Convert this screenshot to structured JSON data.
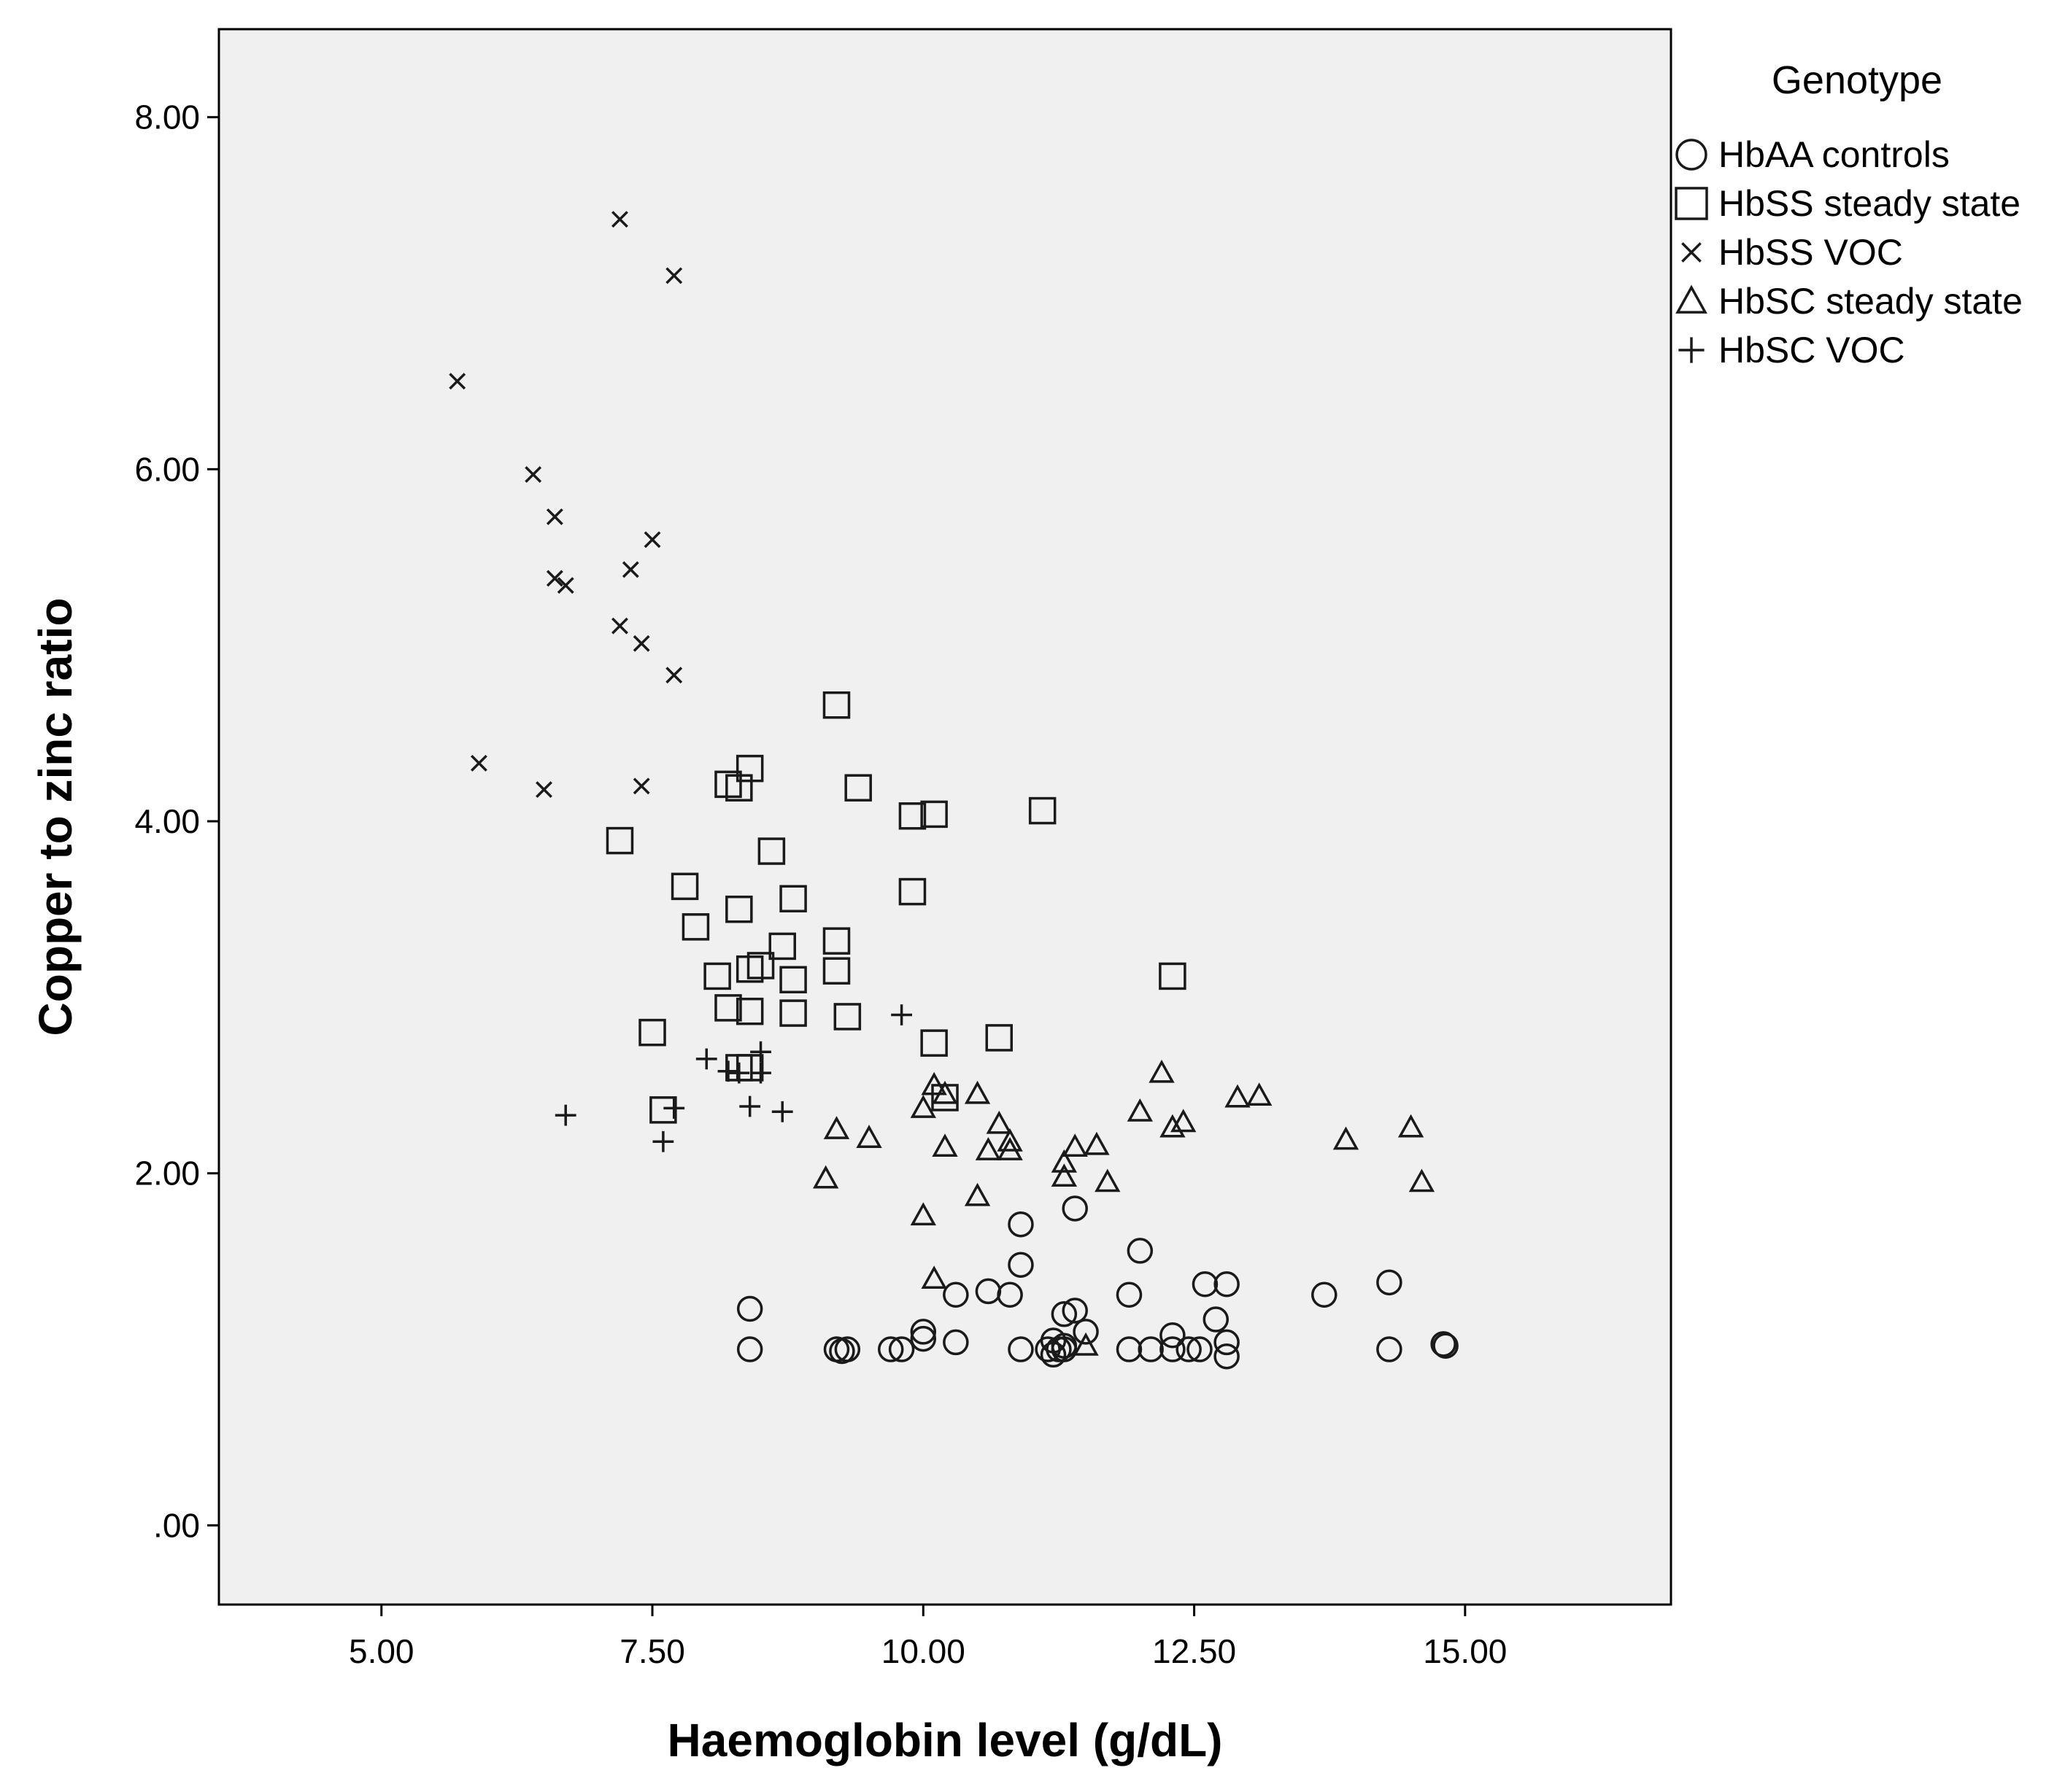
{
  "chart_data": {
    "type": "scatter",
    "title": "",
    "xlabel": "Haemoglobin level (g/dL)",
    "ylabel": "Copper to zinc ratio",
    "xlim": [
      3.5,
      16.9
    ],
    "ylim": [
      -0.45,
      8.5
    ],
    "xticks": [
      5.0,
      7.5,
      10.0,
      12.5,
      15.0
    ],
    "xtick_labels": [
      "5.00",
      "7.50",
      "10.00",
      "12.50",
      "15.00"
    ],
    "yticks": [
      0.0,
      2.0,
      4.0,
      6.0,
      8.0
    ],
    "ytick_labels": [
      ".00",
      "2.00",
      "4.00",
      "6.00",
      "8.00"
    ],
    "grid": false,
    "legend_title": "Genotype",
    "legend_position": "right",
    "series": [
      {
        "name": "HbAA controls",
        "marker": "circle",
        "points": [
          [
            8.4,
            1.23
          ],
          [
            8.4,
            1.0
          ],
          [
            9.2,
            1.0
          ],
          [
            9.25,
            0.99
          ],
          [
            9.3,
            1.0
          ],
          [
            9.7,
            1.0
          ],
          [
            9.8,
            1.0
          ],
          [
            10.0,
            1.1
          ],
          [
            10.0,
            1.06
          ],
          [
            10.3,
            1.31
          ],
          [
            10.3,
            1.04
          ],
          [
            10.6,
            1.33
          ],
          [
            10.8,
            1.31
          ],
          [
            10.9,
            1.71
          ],
          [
            10.9,
            1.48
          ],
          [
            10.9,
            1.0
          ],
          [
            11.15,
            1.0
          ],
          [
            11.2,
            0.97
          ],
          [
            11.2,
            1.05
          ],
          [
            11.25,
            1.0
          ],
          [
            11.3,
            1.2
          ],
          [
            11.3,
            1.0
          ],
          [
            11.3,
            1.02
          ],
          [
            11.4,
            1.8
          ],
          [
            11.4,
            1.22
          ],
          [
            11.5,
            1.1
          ],
          [
            11.9,
            1.31
          ],
          [
            11.9,
            1.0
          ],
          [
            12.0,
            1.56
          ],
          [
            12.1,
            1.0
          ],
          [
            12.3,
            1.08
          ],
          [
            12.3,
            1.0
          ],
          [
            12.45,
            1.0
          ],
          [
            12.55,
            1.0
          ],
          [
            12.6,
            1.37
          ],
          [
            12.7,
            1.17
          ],
          [
            12.8,
            1.37
          ],
          [
            12.8,
            1.04
          ],
          [
            12.8,
            0.96
          ],
          [
            13.7,
            1.31
          ],
          [
            14.3,
            1.38
          ],
          [
            14.3,
            1.0
          ],
          [
            14.8,
            1.03
          ],
          [
            14.82,
            1.02
          ]
        ]
      },
      {
        "name": "HbSS steady state",
        "marker": "square",
        "points": [
          [
            7.2,
            3.89
          ],
          [
            7.5,
            2.8
          ],
          [
            7.6,
            2.36
          ],
          [
            7.8,
            3.63
          ],
          [
            7.9,
            3.4
          ],
          [
            8.1,
            3.12
          ],
          [
            8.2,
            4.21
          ],
          [
            8.2,
            2.94
          ],
          [
            8.3,
            4.19
          ],
          [
            8.3,
            3.5
          ],
          [
            8.3,
            2.6
          ],
          [
            8.4,
            4.3
          ],
          [
            8.4,
            3.16
          ],
          [
            8.4,
            2.92
          ],
          [
            8.4,
            2.6
          ],
          [
            8.5,
            3.18
          ],
          [
            8.6,
            3.83
          ],
          [
            8.7,
            3.29
          ],
          [
            8.8,
            3.56
          ],
          [
            8.8,
            3.1
          ],
          [
            8.8,
            2.91
          ],
          [
            9.2,
            4.66
          ],
          [
            9.2,
            3.32
          ],
          [
            9.2,
            3.15
          ],
          [
            9.3,
            2.89
          ],
          [
            9.4,
            4.19
          ],
          [
            9.9,
            4.03
          ],
          [
            9.9,
            3.6
          ],
          [
            10.1,
            4.04
          ],
          [
            10.1,
            2.74
          ],
          [
            10.2,
            2.43
          ],
          [
            10.7,
            2.77
          ],
          [
            11.1,
            4.06
          ],
          [
            12.3,
            3.12
          ]
        ]
      },
      {
        "name": "HbSS VOC",
        "marker": "x",
        "points": [
          [
            5.7,
            6.5
          ],
          [
            5.9,
            4.33
          ],
          [
            6.4,
            5.97
          ],
          [
            6.5,
            4.18
          ],
          [
            6.6,
            5.73
          ],
          [
            6.6,
            5.38
          ],
          [
            6.7,
            5.34
          ],
          [
            7.2,
            7.42
          ],
          [
            7.2,
            5.11
          ],
          [
            7.3,
            5.43
          ],
          [
            7.4,
            5.01
          ],
          [
            7.4,
            4.2
          ],
          [
            7.5,
            5.6
          ],
          [
            7.7,
            7.1
          ],
          [
            7.7,
            4.83
          ]
        ]
      },
      {
        "name": "HbSC steady state",
        "marker": "triangle",
        "points": [
          [
            9.1,
            1.97
          ],
          [
            9.2,
            2.25
          ],
          [
            9.5,
            2.2
          ],
          [
            10.0,
            2.37
          ],
          [
            10.0,
            1.76
          ],
          [
            10.1,
            2.5
          ],
          [
            10.1,
            1.4
          ],
          [
            10.2,
            2.45
          ],
          [
            10.2,
            2.15
          ],
          [
            10.5,
            2.45
          ],
          [
            10.5,
            1.87
          ],
          [
            10.6,
            2.13
          ],
          [
            10.7,
            2.28
          ],
          [
            10.8,
            2.18
          ],
          [
            10.8,
            2.13
          ],
          [
            11.3,
            2.06
          ],
          [
            11.3,
            1.98
          ],
          [
            11.4,
            2.15
          ],
          [
            11.5,
            1.02
          ],
          [
            11.6,
            2.16
          ],
          [
            11.7,
            1.95
          ],
          [
            12.0,
            2.35
          ],
          [
            12.2,
            2.57
          ],
          [
            12.3,
            2.26
          ],
          [
            12.4,
            2.29
          ],
          [
            12.9,
            2.43
          ],
          [
            13.1,
            2.44
          ],
          [
            13.9,
            2.19
          ],
          [
            14.5,
            2.26
          ],
          [
            14.6,
            1.95
          ]
        ]
      },
      {
        "name": "HbSC VOC",
        "marker": "plus",
        "points": [
          [
            6.7,
            2.33
          ],
          [
            7.6,
            2.18
          ],
          [
            7.7,
            2.37
          ],
          [
            8.0,
            2.65
          ],
          [
            8.2,
            2.58
          ],
          [
            8.3,
            2.57
          ],
          [
            8.4,
            2.38
          ],
          [
            8.5,
            2.69
          ],
          [
            8.5,
            2.57
          ],
          [
            8.7,
            2.35
          ],
          [
            9.8,
            2.9
          ]
        ]
      }
    ]
  }
}
